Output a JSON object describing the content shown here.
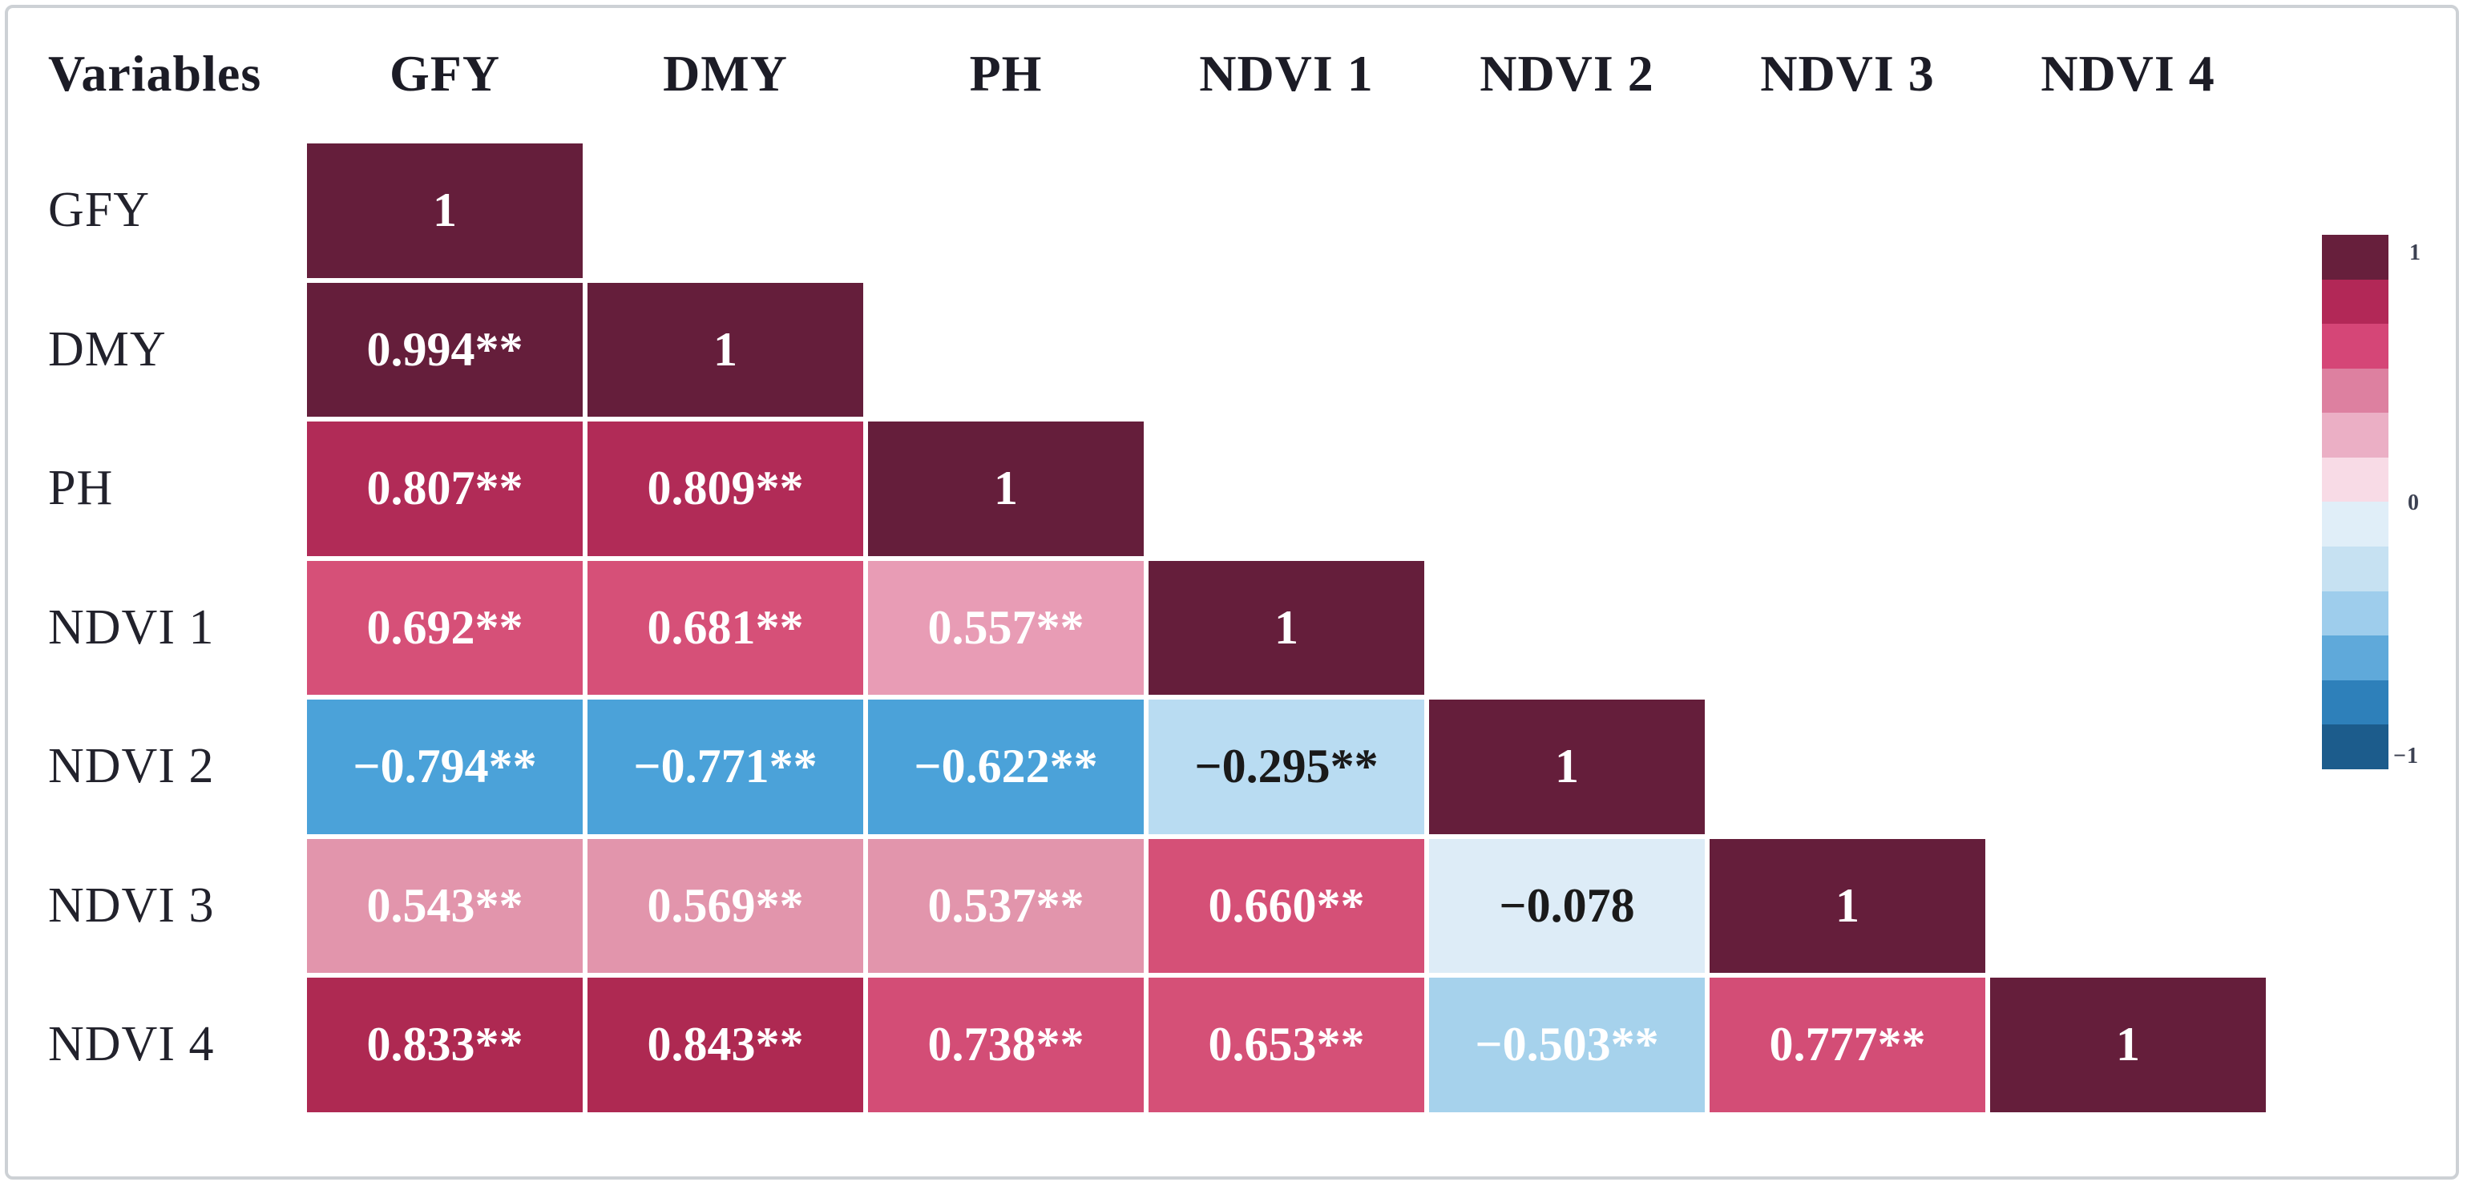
{
  "figure": {
    "corner_label": "Variables"
  },
  "columns": [
    "GFY",
    "DMY",
    "PH",
    "NDVI 1",
    "NDVI 2",
    "NDVI 3",
    "NDVI 4"
  ],
  "rows": [
    {
      "label": "GFY",
      "cells": [
        {
          "text": "1",
          "bg": "#651e3b",
          "fg": "#ffffff"
        }
      ]
    },
    {
      "label": "DMY",
      "cells": [
        {
          "text": "0.994**",
          "bg": "#651e3b",
          "fg": "#ffffff"
        },
        {
          "text": "1",
          "bg": "#651e3b",
          "fg": "#ffffff"
        }
      ]
    },
    {
      "label": "PH",
      "cells": [
        {
          "text": "0.807**",
          "bg": "#b12b57",
          "fg": "#ffffff"
        },
        {
          "text": "0.809**",
          "bg": "#b12b57",
          "fg": "#ffffff"
        },
        {
          "text": "1",
          "bg": "#651e3b",
          "fg": "#ffffff"
        }
      ]
    },
    {
      "label": "NDVI 1",
      "cells": [
        {
          "text": "0.692**",
          "bg": "#d65078",
          "fg": "#ffffff"
        },
        {
          "text": "0.681**",
          "bg": "#d65078",
          "fg": "#ffffff"
        },
        {
          "text": "0.557**",
          "bg": "#e89cb5",
          "fg": "#ffffff"
        },
        {
          "text": "1",
          "bg": "#651e3b",
          "fg": "#ffffff"
        }
      ]
    },
    {
      "label": "NDVI 2",
      "cells": [
        {
          "text": "−0.794**",
          "bg": "#4ba2d9",
          "fg": "#ffffff"
        },
        {
          "text": "−0.771**",
          "bg": "#4ba2d9",
          "fg": "#ffffff"
        },
        {
          "text": "−0.622**",
          "bg": "#4ba2d9",
          "fg": "#ffffff"
        },
        {
          "text": "−0.295**",
          "bg": "#b9dcf2",
          "fg": "#1a1a1a"
        },
        {
          "text": "1",
          "bg": "#651e3b",
          "fg": "#ffffff"
        }
      ]
    },
    {
      "label": "NDVI 3",
      "cells": [
        {
          "text": "0.543**",
          "bg": "#e295ac",
          "fg": "#ffffff"
        },
        {
          "text": "0.569**",
          "bg": "#e295ac",
          "fg": "#ffffff"
        },
        {
          "text": "0.537**",
          "bg": "#e295ac",
          "fg": "#ffffff"
        },
        {
          "text": "0.660**",
          "bg": "#d55077",
          "fg": "#ffffff"
        },
        {
          "text": "−0.078",
          "bg": "#ddecf7",
          "fg": "#1a1a1a"
        },
        {
          "text": "1",
          "bg": "#651e3b",
          "fg": "#ffffff"
        }
      ]
    },
    {
      "label": "NDVI 4",
      "cells": [
        {
          "text": "0.833**",
          "bg": "#ae2952",
          "fg": "#ffffff"
        },
        {
          "text": "0.843**",
          "bg": "#ae2952",
          "fg": "#ffffff"
        },
        {
          "text": "0.738**",
          "bg": "#d34d76",
          "fg": "#ffffff"
        },
        {
          "text": "0.653**",
          "bg": "#d55077",
          "fg": "#ffffff"
        },
        {
          "text": "−0.503**",
          "bg": "#a6d2ec",
          "fg": "#ffffff"
        },
        {
          "text": "0.777**",
          "bg": "#d34d76",
          "fg": "#ffffff"
        },
        {
          "text": "1",
          "bg": "#651e3b",
          "fg": "#ffffff"
        }
      ]
    }
  ],
  "legend": {
    "max_label": "1",
    "zero_label": "0",
    "min_label": "−1",
    "segments": [
      "#671f3c",
      "#b22857",
      "#d54677",
      "#dd80a0",
      "#ebafc5",
      "#f8dbe6",
      "#e0eef8",
      "#c6e1f2",
      "#9ecdec",
      "#5fa9da",
      "#2e80ba",
      "#1c5c8c"
    ]
  },
  "chart_data": {
    "type": "heatmap",
    "title": "",
    "corner_header": "Variables",
    "variables": [
      "GFY",
      "DMY",
      "PH",
      "NDVI 1",
      "NDVI 2",
      "NDVI 3",
      "NDVI 4"
    ],
    "matrix_lower_triangle": [
      [
        1
      ],
      [
        0.994,
        1
      ],
      [
        0.807,
        0.809,
        1
      ],
      [
        0.692,
        0.681,
        0.557,
        1
      ],
      [
        -0.794,
        -0.771,
        -0.622,
        -0.295,
        1
      ],
      [
        0.543,
        0.569,
        0.537,
        0.66,
        -0.078,
        1
      ],
      [
        0.833,
        0.843,
        0.738,
        0.653,
        -0.503,
        0.777,
        1
      ]
    ],
    "cell_labels_lower_triangle": [
      [
        "1"
      ],
      [
        "0.994**",
        "1"
      ],
      [
        "0.807**",
        "0.809**",
        "1"
      ],
      [
        "0.692**",
        "0.681**",
        "0.557**",
        "1"
      ],
      [
        "−0.794**",
        "−0.771**",
        "−0.622**",
        "−0.295**",
        "1"
      ],
      [
        "0.543**",
        "0.569**",
        "0.537**",
        "0.660**",
        "−0.078",
        "1"
      ],
      [
        "0.833**",
        "0.843**",
        "0.738**",
        "0.653**",
        "−0.503**",
        "0.777**",
        "1"
      ]
    ],
    "colorbar": {
      "position": "right",
      "min": -1,
      "max": 1,
      "tick_labels": [
        "1",
        "0",
        "−1"
      ],
      "colors_top_to_bottom": [
        "#671f3c",
        "#b22857",
        "#d54677",
        "#dd80a0",
        "#ebafc5",
        "#f8dbe6",
        "#e0eef8",
        "#c6e1f2",
        "#9ecdec",
        "#5fa9da",
        "#2e80ba",
        "#1c5c8c"
      ]
    },
    "layout_hints": {
      "shape": "lower-triangular correlation matrix with diagonal of 1s",
      "grid": "white gaps between cells",
      "negative_sign": "unicode minus"
    }
  }
}
